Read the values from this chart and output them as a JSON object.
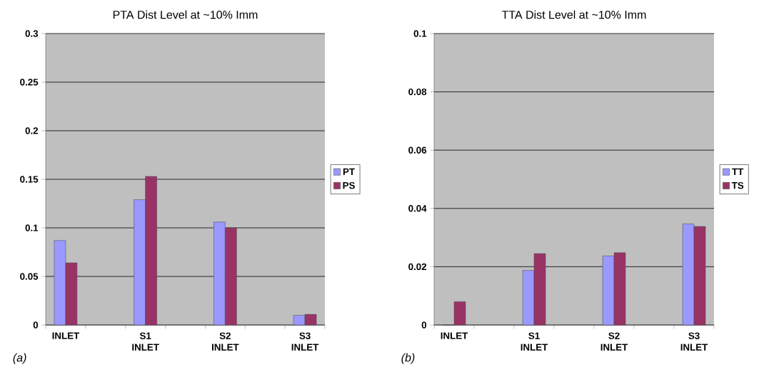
{
  "chart_data": [
    {
      "type": "bar",
      "title": "PTA Dist Level at ~10% Imm",
      "categories": [
        "INLET",
        null,
        "S1 INLET",
        null,
        "S2 INLET",
        null,
        "S3 INLET"
      ],
      "series": [
        {
          "name": "PT",
          "color": "#9999ff",
          "values": [
            0.087,
            null,
            0.129,
            null,
            0.106,
            null,
            0.01
          ]
        },
        {
          "name": "PS",
          "color": "#993366",
          "values": [
            0.064,
            null,
            0.153,
            null,
            0.1,
            null,
            0.011
          ]
        }
      ],
      "ylim": [
        0,
        0.3
      ],
      "yticks": [
        0,
        0.05,
        0.1,
        0.15,
        0.2,
        0.25,
        0.3
      ],
      "grid": "y",
      "legend": "right",
      "annotations": [
        "(a)"
      ]
    },
    {
      "type": "bar",
      "title": "TTA Dist Level at ~10% Imm",
      "categories": [
        "INLET",
        null,
        "S1 INLET",
        null,
        "S2 INLET",
        null,
        "S3 INLET"
      ],
      "series": [
        {
          "name": "TT",
          "color": "#9999ff",
          "values": [
            0,
            null,
            0.0187,
            null,
            0.0237,
            null,
            0.0347
          ]
        },
        {
          "name": "TS",
          "color": "#993366",
          "values": [
            0.008,
            null,
            0.0245,
            null,
            0.0248,
            null,
            0.0338
          ]
        }
      ],
      "ylim": [
        0,
        0.1
      ],
      "yticks": [
        0,
        0.02,
        0.04,
        0.06,
        0.08,
        0.1
      ],
      "grid": "y",
      "legend": "right",
      "annotations": [
        "(b)"
      ]
    }
  ]
}
